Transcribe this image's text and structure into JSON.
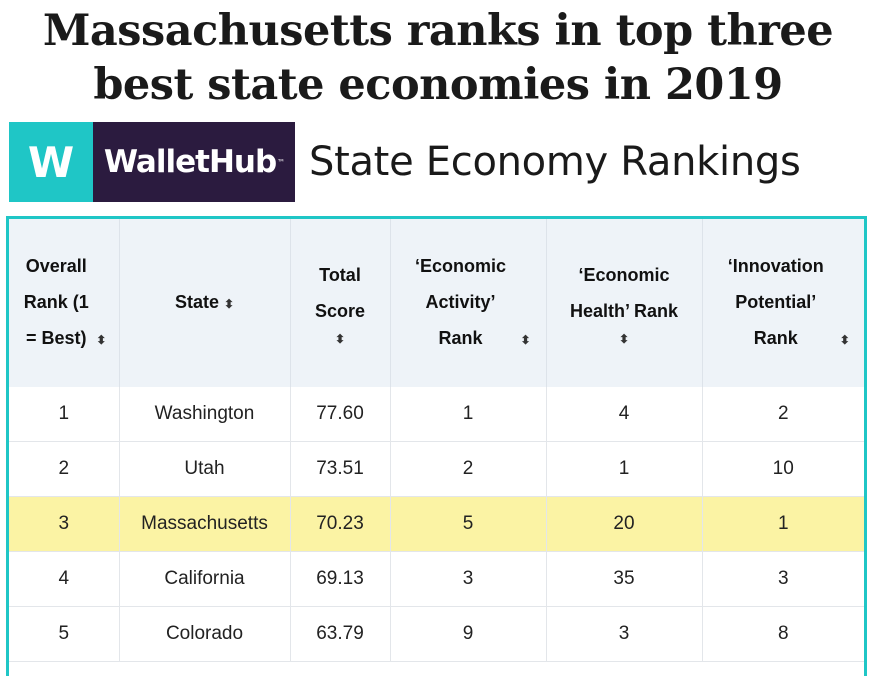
{
  "headline": "Massachusetts ranks in top three best state economies in 2019",
  "brand": {
    "logo_letter": "W",
    "logo_name": "WalletHub",
    "logo_tm": "™",
    "title": "State Economy Rankings"
  },
  "table": {
    "columns": [
      "Overall Rank (1 = Best)",
      "State",
      "Total Score",
      "‘Economic Activity’ Rank",
      "‘Economic Health’ Rank",
      "‘Innovation Potential’ Rank"
    ],
    "sort_icon": "⬍",
    "highlight_state": "Massachusetts",
    "rows": [
      {
        "rank": "1",
        "state": "Washington",
        "score": "77.60",
        "activity": "1",
        "health": "4",
        "innovation": "2"
      },
      {
        "rank": "2",
        "state": "Utah",
        "score": "73.51",
        "activity": "2",
        "health": "1",
        "innovation": "10"
      },
      {
        "rank": "3",
        "state": "Massachusetts",
        "score": "70.23",
        "activity": "5",
        "health": "20",
        "innovation": "1"
      },
      {
        "rank": "4",
        "state": "California",
        "score": "69.13",
        "activity": "3",
        "health": "35",
        "innovation": "3"
      },
      {
        "rank": "5",
        "state": "Colorado",
        "score": "63.79",
        "activity": "9",
        "health": "3",
        "innovation": "8"
      }
    ]
  },
  "colors": {
    "accent": "#1fc6c6",
    "brand_dark": "#2b1b3f",
    "highlight": "#fbf3a4"
  }
}
